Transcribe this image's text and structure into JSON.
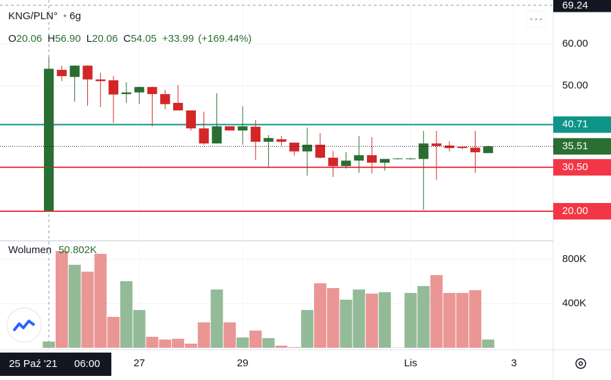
{
  "chart_data": {
    "type": "candlestick",
    "title": "KNG/PLN°",
    "interval": "6g",
    "ohlc_header": [
      {
        "label": "O",
        "value": "20.06"
      },
      {
        "label": "H",
        "value": "56.90"
      },
      {
        "label": "L",
        "value": "20.06"
      },
      {
        "label": "C",
        "value": "54.05"
      }
    ],
    "change": "+33.99",
    "change_pct": "(+169.44%)",
    "open": [
      20.06,
      53.8,
      52.1,
      54.8,
      51.5,
      51.3,
      48.0,
      48.4,
      49.7,
      48.0,
      45.9,
      44.1,
      39.8,
      36.2,
      40.3,
      39.3,
      40.2,
      36.6,
      37.2,
      36.4,
      34.3,
      35.9,
      32.8,
      30.8,
      32.1,
      33.4,
      31.6,
      32.5,
      32.6,
      32.5,
      36.2,
      35.7,
      35.4,
      35.2,
      33.9
    ],
    "high": [
      56.9,
      54.8,
      54.9,
      54.9,
      53.1,
      52.3,
      50.8,
      49.8,
      49.8,
      49.0,
      50.2,
      44.1,
      43.8,
      48.2,
      40.3,
      45.1,
      41.8,
      38.2,
      38.0,
      36.4,
      40.0,
      38.7,
      34.4,
      34.1,
      38.0,
      37.7,
      32.5,
      32.7,
      32.7,
      39.2,
      39.2,
      36.7,
      35.6,
      39.2,
      35.7
    ],
    "low": [
      20.06,
      51.1,
      46.2,
      45.2,
      44.9,
      41.1,
      45.9,
      45.6,
      40.3,
      44.4,
      44.1,
      39.3,
      35.9,
      36.2,
      39.3,
      35.9,
      32.3,
      30.5,
      35.7,
      33.3,
      28.5,
      32.6,
      28.2,
      30.2,
      29.2,
      29.0,
      29.7,
      32.4,
      32.3,
      20.3,
      27.5,
      34.3,
      34.8,
      29.2,
      33.9
    ],
    "close": [
      54.05,
      52.3,
      54.8,
      51.5,
      51.1,
      47.9,
      48.4,
      49.7,
      48.0,
      45.6,
      44.1,
      39.8,
      36.2,
      40.3,
      39.3,
      40.3,
      36.6,
      37.5,
      36.6,
      34.3,
      35.9,
      32.8,
      30.8,
      32.1,
      33.4,
      31.6,
      32.5,
      32.6,
      32.6,
      36.2,
      35.6,
      35.1,
      35.1,
      34.1,
      35.51
    ],
    "up_color": "#2b6e33",
    "down_color": "#d32727",
    "ylim": [
      13.11,
      70.49
    ],
    "yticks": [
      {
        "value": 60,
        "label": "60.00"
      },
      {
        "value": 50,
        "label": "50.00"
      }
    ],
    "xlim": [
      -3.78,
      39.04
    ],
    "xticks": [
      {
        "value": 7,
        "label": "27"
      },
      {
        "value": 15,
        "label": "29"
      },
      {
        "value": 28,
        "label": "Lis"
      },
      {
        "value": 36,
        "label": "3"
      }
    ],
    "hlines": [
      {
        "value": 40.71,
        "label": "40.71",
        "color": "#0e9488"
      },
      {
        "value": 30.5,
        "label": "30.50",
        "color": "#f23645"
      },
      {
        "value": 20,
        "label": "20.00",
        "color": "#f23645"
      }
    ],
    "last_price": {
      "value": 35.51,
      "label": "35.51",
      "color": "#2b6e33"
    },
    "crosshair": {
      "price": {
        "value": 69.24,
        "label": "69.24"
      },
      "date": "25 Paź '21",
      "time": "06:00"
    },
    "volume": {
      "name": "Wolumen",
      "last": "50.802K",
      "values": [
        56000,
        873000,
        749000,
        687000,
        848000,
        279000,
        601000,
        341000,
        99000,
        74000,
        81000,
        37000,
        229000,
        526000,
        229000,
        93000,
        155000,
        87000,
        19000,
        6000,
        341000,
        582000,
        539000,
        434000,
        526000,
        489000,
        502000,
        2000,
        495000,
        557000,
        656000,
        495000,
        495000,
        520000,
        74000
      ],
      "up_color": "#93bb97",
      "down_color": "#ea9695",
      "ylim": [
        0,
        960000
      ],
      "yticks": [
        {
          "value": 800000,
          "label": "800K"
        },
        {
          "value": 400000,
          "label": "400K"
        }
      ]
    }
  }
}
